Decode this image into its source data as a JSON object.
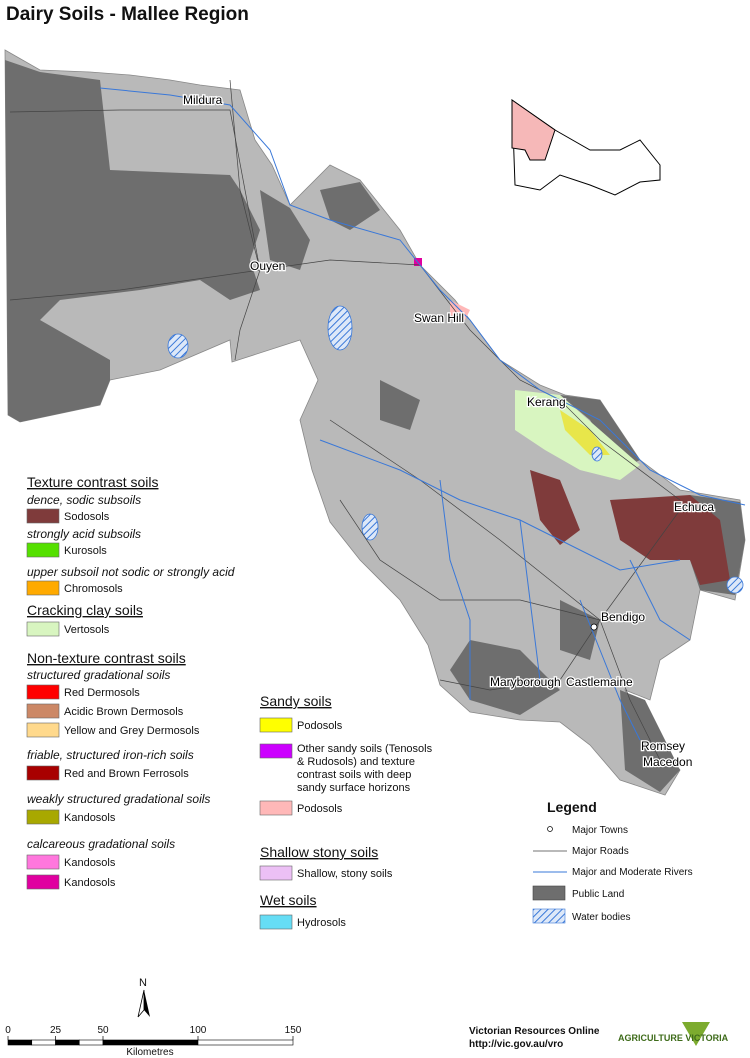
{
  "title": "Dairy Soils - Mallee Region",
  "towns": [
    "Mildura",
    "Ouyen",
    "Swan Hill",
    "Kerang",
    "Echuca",
    "Bendigo",
    "Maryborough",
    "Castlemaine",
    "Romsey",
    "Macedon"
  ],
  "soil_legend": {
    "texture_contrast": {
      "heading": "Texture contrast soils",
      "groups": [
        {
          "subheading": "dence, sodic subsoils",
          "items": [
            {
              "label": "Sodosols",
              "color": "#7f3b3b"
            }
          ]
        },
        {
          "subheading": "strongly acid subsoils",
          "items": [
            {
              "label": "Kurosols",
              "color": "#55e000"
            }
          ]
        },
        {
          "subheading": "upper subsoil not sodic or strongly acid",
          "items": [
            {
              "label": "Chromosols",
              "color": "#ffaa00"
            }
          ]
        }
      ]
    },
    "cracking_clay": {
      "heading": "Cracking clay soils",
      "items": [
        {
          "label": "Vertosols",
          "color": "#d8f5c0"
        }
      ]
    },
    "non_texture_contrast": {
      "heading": "Non-texture contrast soils",
      "groups": [
        {
          "subheading": "structured gradational soils",
          "items": [
            {
              "label": "Red Dermosols",
              "color": "#ff0000"
            },
            {
              "label": "Acidic Brown Dermosols",
              "color": "#cc8866"
            },
            {
              "label": "Yellow and Grey Dermosols",
              "color": "#ffd98c"
            }
          ]
        },
        {
          "subheading": "friable, structured iron-rich soils",
          "items": [
            {
              "label": "Red and Brown Ferrosols",
              "color": "#a80000"
            }
          ]
        },
        {
          "subheading": "weakly structured gradational soils",
          "items": [
            {
              "label": "Kandosols",
              "color": "#a8a800"
            }
          ]
        },
        {
          "subheading": "calcareous gradational soils",
          "items": [
            {
              "label": "Kandosols",
              "color": "#ff77dd"
            },
            {
              "label": "Kandosols",
              "color": "#e000a0"
            }
          ]
        }
      ]
    },
    "sandy": {
      "heading": "Sandy soils",
      "items": [
        {
          "label": [
            "Podosols"
          ],
          "color": "#ffff00"
        },
        {
          "label": [
            "Other sandy soils (Tenosols",
            "& Rudosols) and texture",
            "contrast soils with deep",
            "sandy surface horizons"
          ],
          "color": "#cc00ff"
        },
        {
          "label": [
            "Podosols"
          ],
          "color": "#ffb8b8"
        }
      ]
    },
    "shallow_stony": {
      "heading": "Shallow stony soils",
      "items": [
        {
          "label": "Shallow, stony soils",
          "color": "#ecc0f5"
        }
      ]
    },
    "wet": {
      "heading": "Wet soils",
      "items": [
        {
          "label": "Hydrosols",
          "color": "#66ddf5"
        }
      ]
    }
  },
  "legend": {
    "title": "Legend",
    "items": [
      "Major Towns",
      "Major Roads",
      "Major and Moderate Rivers",
      "Public Land",
      "Water bodies"
    ]
  },
  "north": "N",
  "scale_bar": {
    "ticks": [
      0,
      25,
      50,
      100,
      150
    ],
    "unit": "Kilometres"
  },
  "credits": [
    "Victorian Resources Online",
    "http://vic.gov.au/vro"
  ],
  "logo": "AGRICULTURE VICTORIA"
}
